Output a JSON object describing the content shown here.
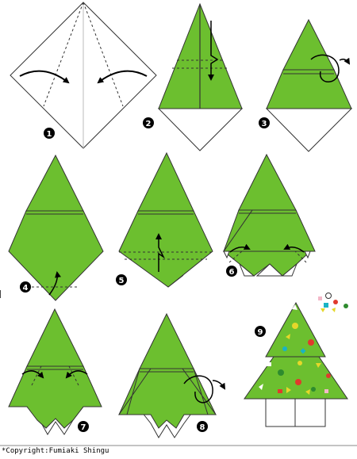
{
  "steps": [
    {
      "number": "1"
    },
    {
      "number": "2"
    },
    {
      "number": "3"
    },
    {
      "number": "4"
    },
    {
      "number": "5"
    },
    {
      "number": "6"
    },
    {
      "number": "7"
    },
    {
      "number": "8"
    },
    {
      "number": "9"
    }
  ],
  "colors": {
    "paper_green": "#6cbf2f",
    "outline": "#333333",
    "ornament_yellow": "#e5d72a",
    "ornament_red": "#e03a2c",
    "ornament_teal": "#1ab3c4",
    "ornament_pink": "#f3b8c8",
    "ornament_darkgreen": "#2e8b2e"
  },
  "footer": {
    "copyright": "*Copyright:Fumiaki Shingu"
  }
}
